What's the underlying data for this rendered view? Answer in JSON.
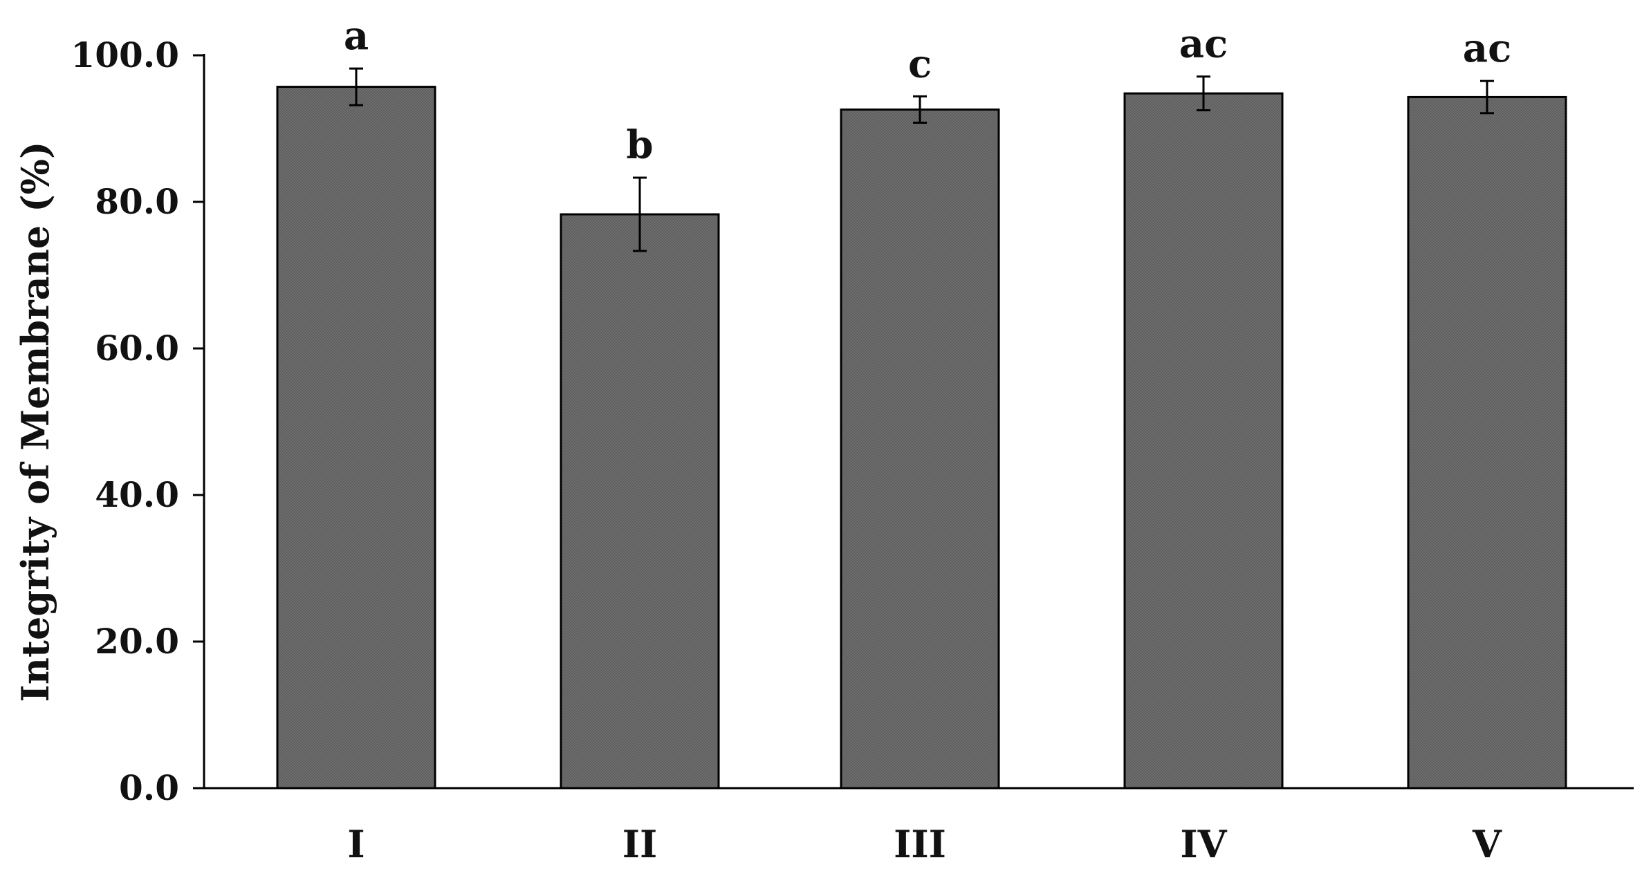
{
  "chart_data": {
    "type": "bar",
    "title": "",
    "xlabel": "",
    "ylabel": "Integrity of Membrane (%)",
    "categories": [
      "I",
      "II",
      "III",
      "IV",
      "V"
    ],
    "values": [
      95.7,
      78.3,
      92.6,
      94.8,
      94.3
    ],
    "errors": [
      2.5,
      5.0,
      1.8,
      2.3,
      2.2
    ],
    "annotations": [
      "a",
      "b",
      "c",
      "ac",
      "ac"
    ],
    "ylim": [
      0,
      100
    ],
    "yticks": [
      0,
      20,
      40,
      60,
      80,
      100
    ],
    "ytick_labels": [
      "0.0",
      "20.0",
      "40.0",
      "60.0",
      "80.0",
      "100.0"
    ],
    "grid": false,
    "legend": "none",
    "colors": {
      "bar_fill": "#6b6b6b",
      "bar_stroke": "#000000",
      "axis": "#000000"
    }
  }
}
